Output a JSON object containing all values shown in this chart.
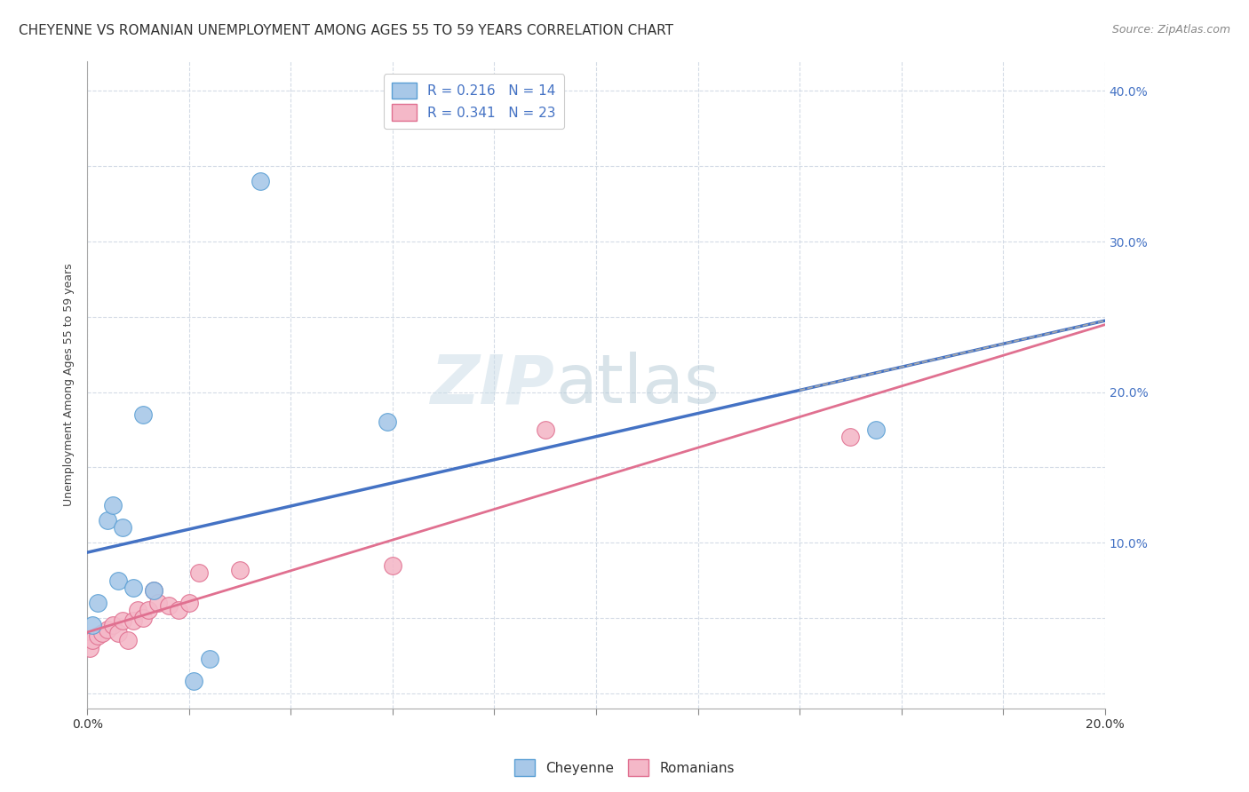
{
  "title": "CHEYENNE VS ROMANIAN UNEMPLOYMENT AMONG AGES 55 TO 59 YEARS CORRELATION CHART",
  "source": "Source: ZipAtlas.com",
  "ylabel": "Unemployment Among Ages 55 to 59 years",
  "xlim": [
    0.0,
    0.2
  ],
  "ylim": [
    -0.01,
    0.42
  ],
  "xticks": [
    0.0,
    0.02,
    0.04,
    0.06,
    0.08,
    0.1,
    0.12,
    0.14,
    0.16,
    0.18,
    0.2
  ],
  "yticks": [
    0.0,
    0.05,
    0.1,
    0.15,
    0.2,
    0.25,
    0.3,
    0.35,
    0.4
  ],
  "cheyenne_color": "#a8c8e8",
  "romanian_color": "#f4b8c8",
  "cheyenne_edge_color": "#5a9fd4",
  "romanian_edge_color": "#e07090",
  "cheyenne_line_color": "#4472C4",
  "romanian_line_color": "#e07090",
  "legend_color": "#4472C4",
  "watermark_zip_color": "#c8d8e8",
  "watermark_atlas_color": "#b0c8d8",
  "cheyenne_R": 0.216,
  "cheyenne_N": 14,
  "romanian_R": 0.341,
  "romanian_N": 23,
  "cheyenne_x": [
    0.001,
    0.002,
    0.004,
    0.005,
    0.006,
    0.007,
    0.009,
    0.011,
    0.013,
    0.021,
    0.024,
    0.034,
    0.059,
    0.155
  ],
  "cheyenne_y": [
    0.045,
    0.06,
    0.115,
    0.125,
    0.075,
    0.11,
    0.07,
    0.185,
    0.068,
    0.008,
    0.023,
    0.34,
    0.18,
    0.175
  ],
  "romanian_x": [
    0.0005,
    0.001,
    0.002,
    0.003,
    0.004,
    0.005,
    0.006,
    0.007,
    0.008,
    0.009,
    0.01,
    0.011,
    0.012,
    0.013,
    0.014,
    0.016,
    0.018,
    0.02,
    0.022,
    0.03,
    0.06,
    0.09,
    0.15
  ],
  "romanian_y": [
    0.03,
    0.035,
    0.038,
    0.04,
    0.042,
    0.045,
    0.04,
    0.048,
    0.035,
    0.048,
    0.055,
    0.05,
    0.055,
    0.068,
    0.06,
    0.058,
    0.055,
    0.06,
    0.08,
    0.082,
    0.085,
    0.175,
    0.17
  ],
  "background_color": "#ffffff",
  "grid_color": "#d0d8e4",
  "title_fontsize": 11,
  "axis_label_fontsize": 9,
  "tick_fontsize": 10,
  "legend_fontsize": 11,
  "source_fontsize": 9
}
